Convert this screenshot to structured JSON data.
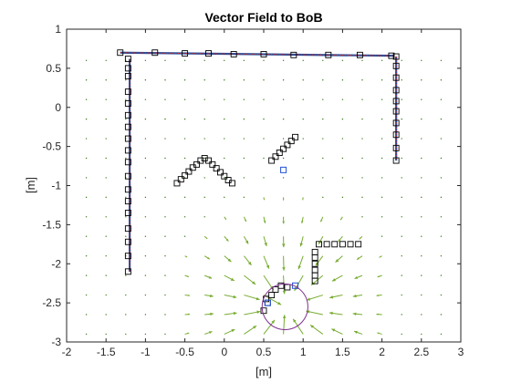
{
  "chart_data": {
    "type": "scatter",
    "title": "Vector Field to BoB",
    "xlabel": "[m]",
    "ylabel": "[m]",
    "xlim": [
      -2,
      3
    ],
    "ylim": [
      -3,
      1
    ],
    "xticks": [
      "-2",
      "-1.5",
      "-1",
      "-0.5",
      "0",
      "0.5",
      "1",
      "1.5",
      "2",
      "2.5",
      "3"
    ],
    "yticks": [
      "1",
      "0.5",
      "0",
      "-0.5",
      "-1",
      "-1.5",
      "-2",
      "-2.5",
      "-3"
    ],
    "grid": false,
    "colors": {
      "path_line": "#d62728",
      "path_line_inner": "#1f4e9c",
      "marker": "#000000",
      "marker_blue": "#1f4ed8",
      "vector": "#77ac30",
      "circle": "#7e2f8e",
      "dots": "#3a7d1a"
    },
    "target": {
      "x": 0.77,
      "y": -2.55,
      "r": 0.29
    },
    "walls": [
      {
        "points": [
          [
            -1.2,
            -2.1
          ],
          [
            -1.2,
            0.62
          ]
        ]
      },
      {
        "points": [
          [
            -1.32,
            0.7
          ],
          [
            2.15,
            0.66
          ]
        ]
      },
      {
        "points": [
          [
            2.18,
            0.65
          ],
          [
            2.18,
            -0.68
          ]
        ]
      }
    ],
    "markers": [
      [
        -1.22,
        0.62
      ],
      [
        -1.22,
        0.5
      ],
      [
        -1.22,
        0.4
      ],
      [
        -1.22,
        0.2
      ],
      [
        -1.22,
        0.05
      ],
      [
        -1.22,
        -0.1
      ],
      [
        -1.22,
        -0.25
      ],
      [
        -1.22,
        -0.4
      ],
      [
        -1.22,
        -0.55
      ],
      [
        -1.22,
        -0.7
      ],
      [
        -1.22,
        -0.88
      ],
      [
        -1.22,
        -1.05
      ],
      [
        -1.22,
        -1.2
      ],
      [
        -1.22,
        -1.35
      ],
      [
        -1.22,
        -1.55
      ],
      [
        -1.22,
        -1.72
      ],
      [
        -1.22,
        -1.9
      ],
      [
        -1.22,
        -2.1
      ],
      [
        -1.32,
        0.7
      ],
      [
        -0.88,
        0.7
      ],
      [
        -0.5,
        0.69
      ],
      [
        -0.2,
        0.69
      ],
      [
        0.12,
        0.68
      ],
      [
        0.5,
        0.68
      ],
      [
        0.88,
        0.67
      ],
      [
        1.32,
        0.67
      ],
      [
        1.72,
        0.67
      ],
      [
        2.12,
        0.66
      ],
      [
        2.18,
        0.65
      ],
      [
        2.18,
        0.53
      ],
      [
        2.18,
        0.38
      ],
      [
        2.18,
        0.22
      ],
      [
        2.18,
        0.08
      ],
      [
        2.18,
        -0.05
      ],
      [
        2.18,
        -0.2
      ],
      [
        2.18,
        -0.35
      ],
      [
        2.18,
        -0.52
      ],
      [
        2.18,
        -0.68
      ],
      [
        -0.6,
        -0.97
      ],
      [
        -0.55,
        -0.92
      ],
      [
        -0.5,
        -0.87
      ],
      [
        -0.45,
        -0.82
      ],
      [
        -0.4,
        -0.77
      ],
      [
        -0.35,
        -0.73
      ],
      [
        -0.3,
        -0.68
      ],
      [
        -0.25,
        -0.65
      ],
      [
        -0.2,
        -0.68
      ],
      [
        -0.15,
        -0.73
      ],
      [
        -0.1,
        -0.78
      ],
      [
        -0.05,
        -0.83
      ],
      [
        0.0,
        -0.88
      ],
      [
        0.05,
        -0.93
      ],
      [
        0.1,
        -0.97
      ],
      [
        0.6,
        -0.68
      ],
      [
        0.65,
        -0.63
      ],
      [
        0.7,
        -0.58
      ],
      [
        0.75,
        -0.53
      ],
      [
        0.8,
        -0.48
      ],
      [
        0.85,
        -0.43
      ],
      [
        0.9,
        -0.38
      ],
      [
        1.15,
        -2.22
      ],
      [
        1.15,
        -2.15
      ],
      [
        1.15,
        -2.08
      ],
      [
        1.15,
        -2.0
      ],
      [
        1.15,
        -1.92
      ],
      [
        1.15,
        -1.85
      ],
      [
        1.2,
        -1.75
      ],
      [
        1.3,
        -1.75
      ],
      [
        1.4,
        -1.75
      ],
      [
        1.5,
        -1.75
      ],
      [
        1.6,
        -1.75
      ],
      [
        1.7,
        -1.75
      ],
      [
        0.55,
        -2.5
      ],
      [
        0.6,
        -2.4
      ],
      [
        0.65,
        -2.33
      ],
      [
        0.72,
        -2.28
      ],
      [
        0.8,
        -2.3
      ],
      [
        0.5,
        -2.6
      ],
      [
        0.53,
        -2.45
      ]
    ],
    "markers_blue": [
      [
        0.75,
        -0.8
      ],
      [
        0.9,
        -2.28
      ],
      [
        0.55,
        -2.5
      ]
    ]
  }
}
